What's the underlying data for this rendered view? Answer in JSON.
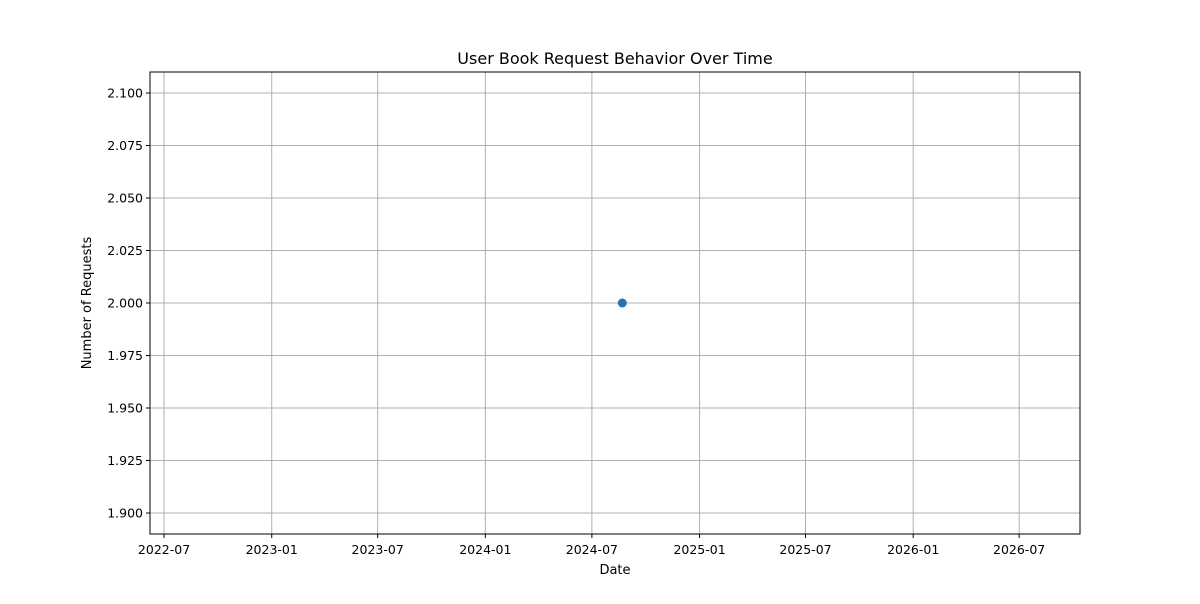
{
  "chart_data": {
    "type": "scatter",
    "title": "User Book Request Behavior Over Time",
    "xlabel": "Date",
    "ylabel": "Number of Requests",
    "x_ticks": [
      "2022-07",
      "2023-01",
      "2023-07",
      "2024-01",
      "2024-07",
      "2025-01",
      "2025-07",
      "2026-01",
      "2026-07"
    ],
    "y_ticks": [
      "1.900",
      "1.925",
      "1.950",
      "1.975",
      "2.000",
      "2.025",
      "2.050",
      "2.075",
      "2.100"
    ],
    "xlim": [
      "2022-06-07",
      "2026-10-13"
    ],
    "ylim": [
      1.89,
      2.11
    ],
    "grid": true,
    "series": [
      {
        "points": [
          {
            "x": "2024-08-22",
            "y": 2.0
          }
        ],
        "color": "#1f77b4",
        "marker": "circle"
      }
    ],
    "colors": {
      "grid": "#b0b0b0",
      "axes": "#000000",
      "marker": "#1f77b4"
    }
  }
}
